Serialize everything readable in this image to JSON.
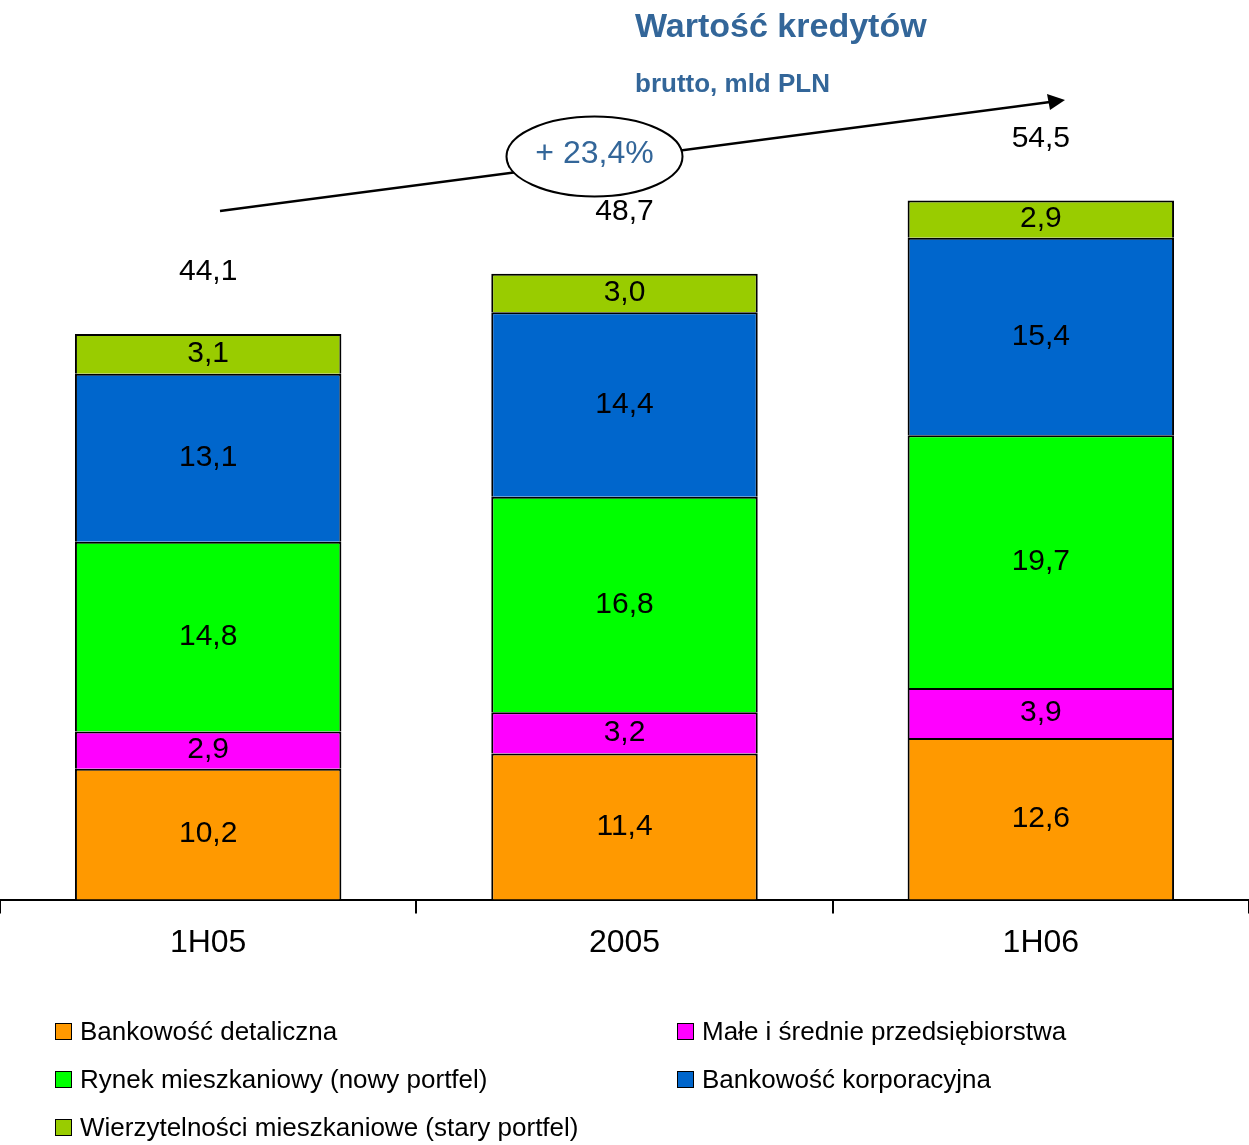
{
  "chart_data": {
    "type": "bar",
    "title": "Wartość kredytów",
    "subtitle": "brutto, mld PLN",
    "categories": [
      "1H05",
      "2005",
      "1H06"
    ],
    "stacked": true,
    "legend": "bottom",
    "annotations": [
      "+ 23,4%"
    ],
    "totals": [
      "44,1",
      "48,7",
      "54,5"
    ],
    "series": [
      {
        "name": "Bankowość detaliczna",
        "color": "#ff9900",
        "values": [
          10.2,
          11.4,
          12.6
        ],
        "value_labels": [
          "10,2",
          "11,4",
          "12,6"
        ]
      },
      {
        "name": "Małe i średnie przedsiębiorstwa",
        "color": "#ff00ff",
        "values": [
          2.9,
          3.2,
          3.9
        ],
        "value_labels": [
          "2,9",
          "3,2",
          "3,9"
        ]
      },
      {
        "name": "Rynek mieszkaniowy (nowy portfel)",
        "color": "#00ff00",
        "values": [
          14.8,
          16.8,
          19.7
        ],
        "value_labels": [
          "14,8",
          "16,8",
          "19,7"
        ]
      },
      {
        "name": "Bankowość korporacyjna",
        "color": "#0066cc",
        "values": [
          13.1,
          14.4,
          15.4
        ],
        "value_labels": [
          "13,1",
          "14,4",
          "15,4"
        ]
      },
      {
        "name": "Wierzytelności mieszkaniowe (stary portfel)",
        "color": "#99cc00",
        "values": [
          3.1,
          3.0,
          2.9
        ],
        "value_labels": [
          "3,1",
          "3,0",
          "2,9"
        ]
      }
    ]
  }
}
